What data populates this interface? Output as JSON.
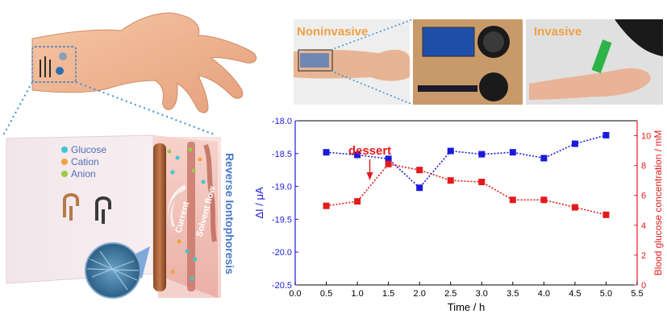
{
  "photos": {
    "noninvasive_label": "Noninvasive",
    "invasive_label": "Invasive"
  },
  "schematic": {
    "legend": [
      {
        "label": "Glucose",
        "color": "#3fc6d6"
      },
      {
        "label": "Cation",
        "color": "#f2a23a"
      },
      {
        "label": "Anion",
        "color": "#9ccc47"
      }
    ],
    "vertical_label": "Reverse Iontophoresis",
    "current_label": "Current",
    "solvent_flow_label": "Solvent flow"
  },
  "chart_data": {
    "type": "line",
    "xlabel": "Time / h",
    "ylabel_left": "ΔI / μA",
    "ylabel_right": "Blood glucose concentration / mM",
    "xlim": [
      0.0,
      5.5
    ],
    "ylim_left": [
      -20.5,
      -18.0
    ],
    "ylim_right": [
      0,
      11
    ],
    "x_ticks": [
      "0.0",
      "0.5",
      "1.0",
      "1.5",
      "2.0",
      "2.5",
      "3.0",
      "3.5",
      "4.0",
      "4.5",
      "5.0",
      "5.5"
    ],
    "y_left_ticks": [
      "-20.5",
      "-20.0",
      "-19.5",
      "-19.0",
      "-18.5",
      "-18.0"
    ],
    "y_right_ticks": [
      "0",
      "2",
      "4",
      "6",
      "8",
      "10"
    ],
    "annotation": {
      "text": "dessert",
      "x": 1.2,
      "color": "#e31a1c"
    },
    "series": [
      {
        "axis": "left",
        "color": "#1a1adb",
        "x": [
          0.5,
          1.0,
          1.5,
          2.0,
          2.5,
          3.0,
          3.5,
          4.0,
          4.5,
          5.0
        ],
        "y": [
          -18.48,
          -18.52,
          -18.58,
          -19.02,
          -18.46,
          -18.51,
          -18.48,
          -18.57,
          -18.35,
          -18.22
        ]
      },
      {
        "axis": "right",
        "color": "#e31a1c",
        "x": [
          0.5,
          1.0,
          1.5,
          2.0,
          2.5,
          3.0,
          3.5,
          4.0,
          4.5,
          5.0
        ],
        "y": [
          5.3,
          5.6,
          8.1,
          7.7,
          7.0,
          6.9,
          5.7,
          5.7,
          5.2,
          4.7
        ]
      }
    ]
  }
}
